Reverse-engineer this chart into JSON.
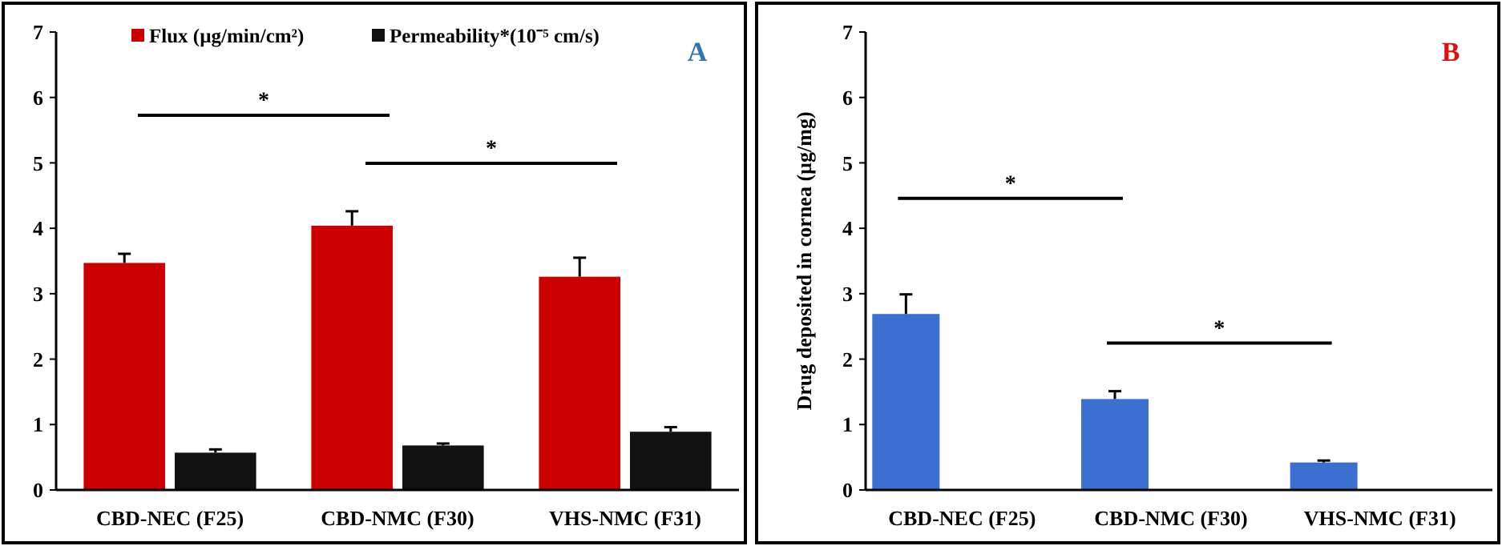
{
  "chart_data": [
    {
      "type": "bar",
      "categories": [
        "CBD-NEC (F25)",
        "CBD-NMC (F30)",
        "VHS-NMC (F31)"
      ],
      "series": [
        {
          "name": "Flux (µg/min/cm²)",
          "color": "#cc0000",
          "values": [
            3.47,
            4.04,
            3.26
          ],
          "errors": [
            0.14,
            0.22,
            0.29
          ]
        },
        {
          "name": "Permeability*(10⁻⁵ cm/s)",
          "color": "#111111",
          "values": [
            0.57,
            0.68,
            0.89
          ],
          "errors": [
            0.05,
            0.03,
            0.07
          ]
        }
      ],
      "ylim": [
        0,
        7
      ],
      "yticks": [
        0,
        1,
        2,
        3,
        4,
        5,
        6,
        7
      ],
      "grid": false,
      "legend": "top",
      "annotations": [
        "A",
        "*",
        "*"
      ]
    },
    {
      "type": "bar",
      "categories": [
        "CBD-NEC (F25)",
        "CBD-NMC (F30)",
        "VHS-NMC (F31)"
      ],
      "series": [
        {
          "color": "#3b6fd0",
          "values": [
            2.69,
            1.39,
            0.42
          ],
          "errors": [
            0.3,
            0.12,
            0.03
          ]
        }
      ],
      "ylabel": "Drug deposited in cornea (µg/mg)",
      "ylim": [
        0,
        7
      ],
      "yticks": [
        0,
        1,
        2,
        3,
        4,
        5,
        6,
        7
      ],
      "grid": false,
      "legend": false,
      "annotations": [
        "B",
        "*",
        "*"
      ]
    }
  ]
}
